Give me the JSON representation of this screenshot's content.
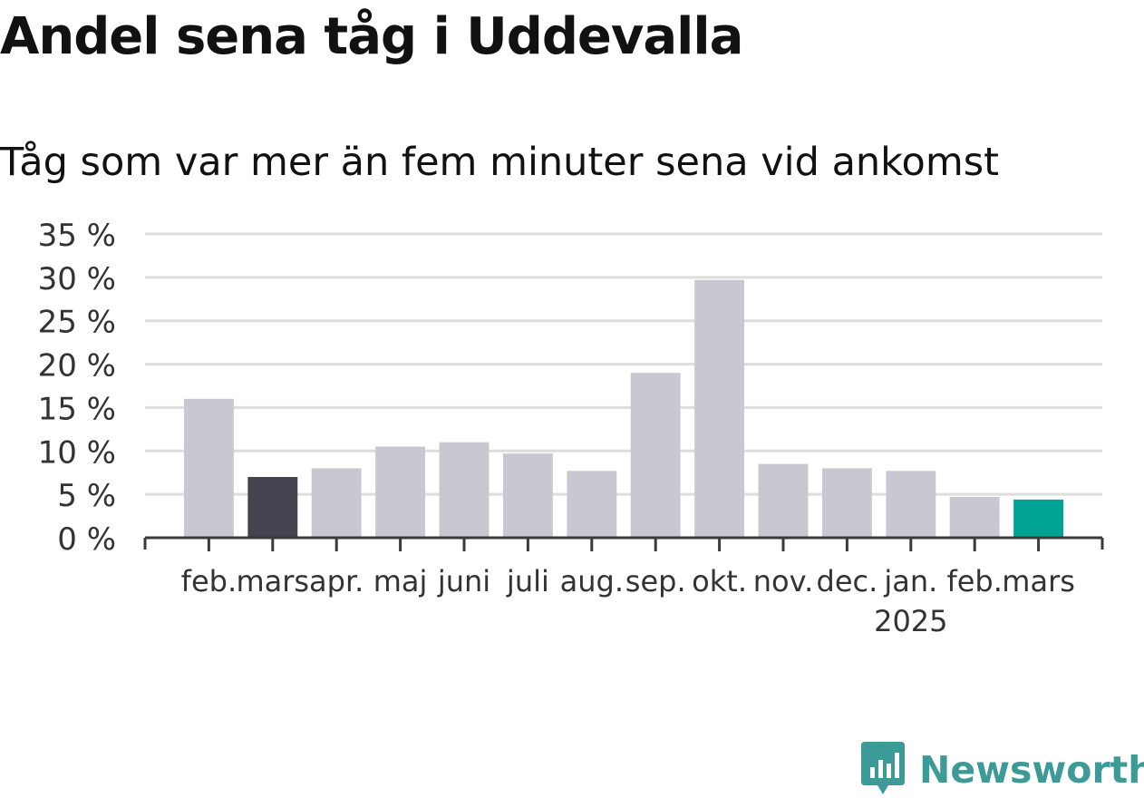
{
  "title": "Andel sena tåg i Uddevalla",
  "subtitle": "Tåg som var mer än fem minuter sena vid ankomst",
  "brand": {
    "name": "Newsworthy",
    "icon": "newsworthy-logo-icon"
  },
  "colors": {
    "default": "#c9c8d1",
    "previous": "#45434f",
    "highlight": "#00a396",
    "grid": "#dedede",
    "axis": "#3a3a3a",
    "text": "#333333"
  },
  "chart_data": {
    "type": "bar",
    "categories": [
      "feb.",
      "mars",
      "apr.",
      "maj",
      "juni",
      "juli",
      "aug.",
      "sep.",
      "okt.",
      "nov.",
      "dec.",
      "jan.",
      "feb.",
      "mars"
    ],
    "category_sublabels": [
      "",
      "",
      "",
      "",
      "",
      "",
      "",
      "",
      "",
      "",
      "",
      "2025",
      "",
      ""
    ],
    "values": [
      16,
      7,
      8,
      10.5,
      11,
      9.7,
      7.7,
      19,
      29.7,
      8.5,
      8,
      7.7,
      4.7,
      4.4
    ],
    "highlight_index": 13,
    "previous_index": 1,
    "ylim": [
      0,
      35
    ],
    "yticks": [
      0,
      5,
      10,
      15,
      20,
      25,
      30,
      35
    ],
    "ytick_labels": [
      "0 %",
      "5 %",
      "10 %",
      "15 %",
      "20 %",
      "25 %",
      "30 %",
      "35 %"
    ],
    "grid": true,
    "xlabel": "",
    "ylabel": ""
  }
}
